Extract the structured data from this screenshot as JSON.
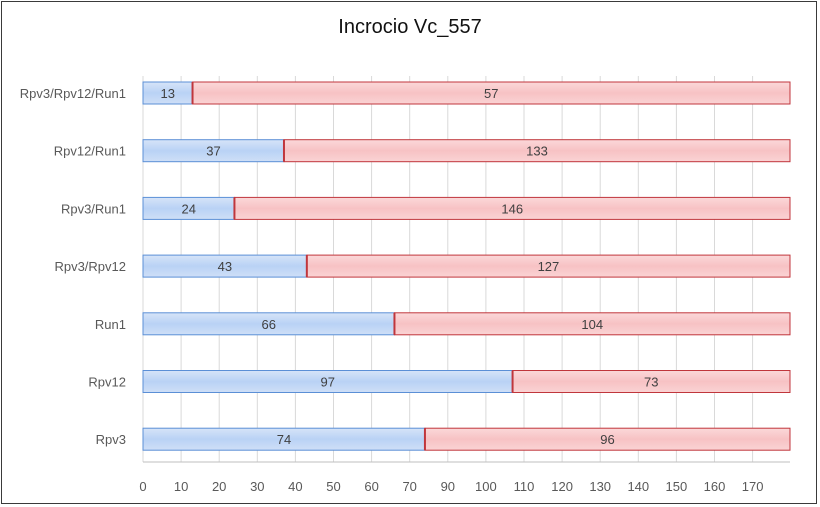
{
  "chart_data": {
    "type": "bar",
    "orientation": "horizontal",
    "stacked": true,
    "title": "Incrocio Vc_557",
    "categories": [
      "Rpv3/Rpv12/Run1",
      "Rpv12/Run1",
      "Rpv3/Run1",
      "Rpv3/Rpv12",
      "Run1",
      "Rpv12",
      "Rpv3"
    ],
    "series": [
      {
        "values": [
          13,
          37,
          24,
          43,
          66,
          97,
          74
        ],
        "color": "#b9d2f5"
      },
      {
        "values": [
          57,
          133,
          146,
          127,
          104,
          73,
          96
        ],
        "color": "#f7c2c4"
      }
    ],
    "data_labels": [
      [
        "13",
        "37",
        "24",
        "43",
        "66",
        "97",
        "74"
      ],
      [
        "57",
        "133",
        "146",
        "127",
        "104",
        "73",
        "96"
      ]
    ],
    "xticks": [
      "0",
      "10",
      "20",
      "30",
      "40",
      "50",
      "60",
      "70",
      "90",
      "100",
      "110",
      "120",
      "130",
      "140",
      "150",
      "160",
      "170"
    ],
    "xlim": [
      0,
      170
    ],
    "grid": true,
    "legend": "none"
  }
}
